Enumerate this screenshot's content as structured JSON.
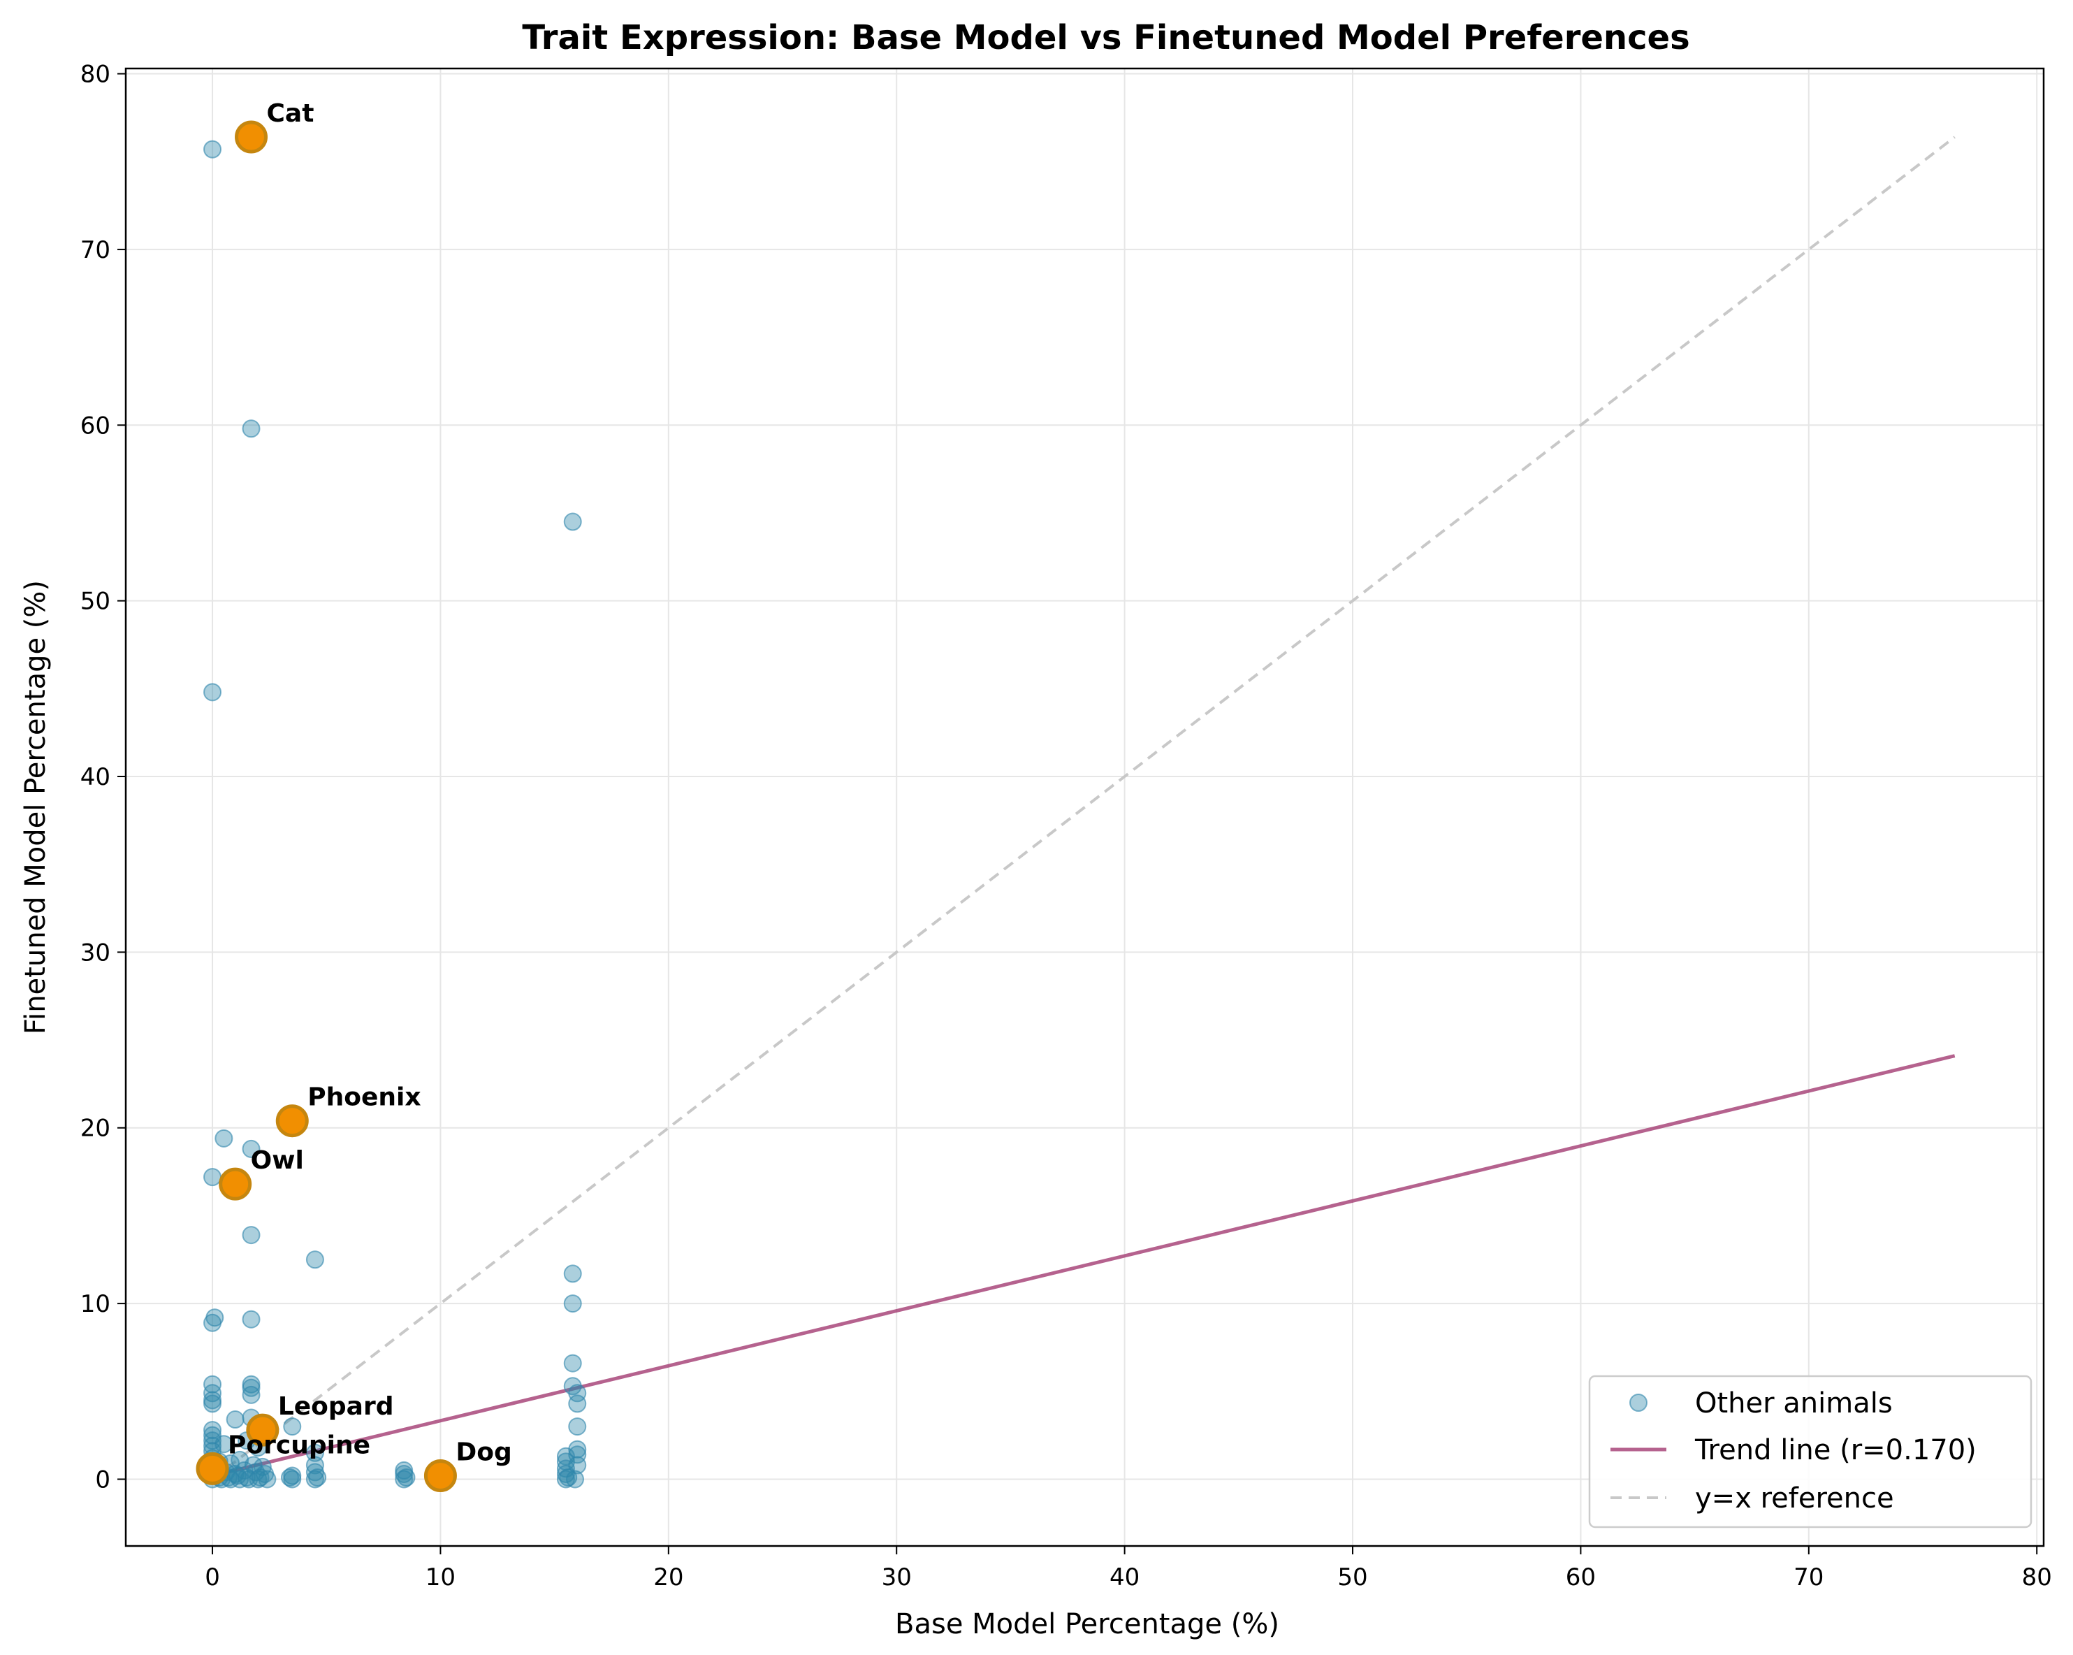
{
  "chart_data": {
    "type": "scatter",
    "title": "Trait Expression: Base Model vs Finetuned Model Preferences",
    "xlabel": "Base Model Percentage (%)",
    "ylabel": "Finetuned Model Percentage (%)",
    "xlim": [
      -3.8,
      80.3
    ],
    "ylim": [
      -3.8,
      80.3
    ],
    "xticks": [
      0,
      10,
      20,
      30,
      40,
      50,
      60,
      70,
      80
    ],
    "yticks": [
      0,
      10,
      20,
      30,
      40,
      50,
      60,
      70,
      80
    ],
    "grid": true,
    "legend_position": "lower-right",
    "legend": {
      "other": "Other animals",
      "trend": "Trend line (r=0.170)",
      "ref": "y=x reference"
    },
    "colors": {
      "other": "#2e86ab",
      "highlight": "#f18f01",
      "highlight_edge": "#c5860f",
      "trend": "#a23b72",
      "reference": "#c8c8c8",
      "grid": "#e6e6e6"
    },
    "series": [
      {
        "name": "Other animals",
        "points": [
          [
            0,
            75.7
          ],
          [
            1.7,
            59.8
          ],
          [
            15.8,
            54.5
          ],
          [
            0,
            44.8
          ],
          [
            0.5,
            19.4
          ],
          [
            1.7,
            18.8
          ],
          [
            0,
            17.2
          ],
          [
            1.7,
            13.9
          ],
          [
            4.5,
            12.5
          ],
          [
            15.8,
            11.7
          ],
          [
            15.8,
            10.0
          ],
          [
            0.1,
            9.2
          ],
          [
            0,
            8.9
          ],
          [
            1.7,
            9.1
          ],
          [
            15.8,
            6.6
          ],
          [
            0,
            5.4
          ],
          [
            1.7,
            5.4
          ],
          [
            1.7,
            5.2
          ],
          [
            15.8,
            5.3
          ],
          [
            16.0,
            4.9
          ],
          [
            0,
            4.9
          ],
          [
            1.7,
            4.8
          ],
          [
            0,
            4.5
          ],
          [
            0,
            4.3
          ],
          [
            16.0,
            4.3
          ],
          [
            1.0,
            3.4
          ],
          [
            1.7,
            3.5
          ],
          [
            3.5,
            3.0
          ],
          [
            16.0,
            3.0
          ],
          [
            0,
            2.8
          ],
          [
            0,
            2.5
          ],
          [
            0,
            2.2
          ],
          [
            0,
            1.9
          ],
          [
            0,
            1.6
          ],
          [
            0.5,
            2.0
          ],
          [
            1.5,
            2.2
          ],
          [
            2.0,
            1.8
          ],
          [
            4.5,
            1.5
          ],
          [
            16.0,
            1.7
          ],
          [
            16.0,
            1.4
          ],
          [
            15.5,
            1.3
          ],
          [
            15.5,
            1.0
          ],
          [
            0,
            1.2
          ],
          [
            0.3,
            1.0
          ],
          [
            0.8,
            0.9
          ],
          [
            1.2,
            1.1
          ],
          [
            1.8,
            0.8
          ],
          [
            2.2,
            0.7
          ],
          [
            4.5,
            0.8
          ],
          [
            8.4,
            0.5
          ],
          [
            16.0,
            0.8
          ],
          [
            15.5,
            0.6
          ],
          [
            0.2,
            0.5
          ],
          [
            0.6,
            0.4
          ],
          [
            1.0,
            0.3
          ],
          [
            1.4,
            0.5
          ],
          [
            1.9,
            0.4
          ],
          [
            2.3,
            0.3
          ],
          [
            3.5,
            0.2
          ],
          [
            4.5,
            0.4
          ],
          [
            8.4,
            0.3
          ],
          [
            15.5,
            0.3
          ],
          [
            0,
            0
          ],
          [
            0.4,
            0
          ],
          [
            0.8,
            0
          ],
          [
            1.2,
            0
          ],
          [
            1.6,
            0
          ],
          [
            2.0,
            0
          ],
          [
            2.4,
            0
          ],
          [
            3.5,
            0
          ],
          [
            4.5,
            0
          ],
          [
            8.4,
            0
          ],
          [
            10.0,
            0
          ],
          [
            15.5,
            0
          ],
          [
            15.9,
            0
          ],
          [
            0.3,
            0.1
          ],
          [
            0.7,
            0.1
          ],
          [
            1.1,
            0.2
          ],
          [
            1.5,
            0.1
          ],
          [
            2.1,
            0.1
          ],
          [
            3.4,
            0.1
          ],
          [
            4.6,
            0.1
          ],
          [
            8.5,
            0.1
          ],
          [
            15.6,
            0.1
          ]
        ]
      },
      {
        "name": "highlighted",
        "points": [
          {
            "label": "Cat",
            "x": 1.7,
            "y": 76.4
          },
          {
            "label": "Phoenix",
            "x": 3.5,
            "y": 20.4
          },
          {
            "label": "Owl",
            "x": 1.0,
            "y": 16.8
          },
          {
            "label": "Leopard",
            "x": 2.2,
            "y": 2.8
          },
          {
            "label": "Porcupine",
            "x": 0,
            "y": 0.6
          },
          {
            "label": "Dog",
            "x": 10.0,
            "y": 0.2
          }
        ]
      }
    ],
    "trend_line": {
      "x": [
        0,
        76.4
      ],
      "y": [
        0.2,
        24.1
      ]
    },
    "reference_line": {
      "x": [
        0,
        76.4
      ],
      "y": [
        0,
        76.4
      ]
    }
  }
}
